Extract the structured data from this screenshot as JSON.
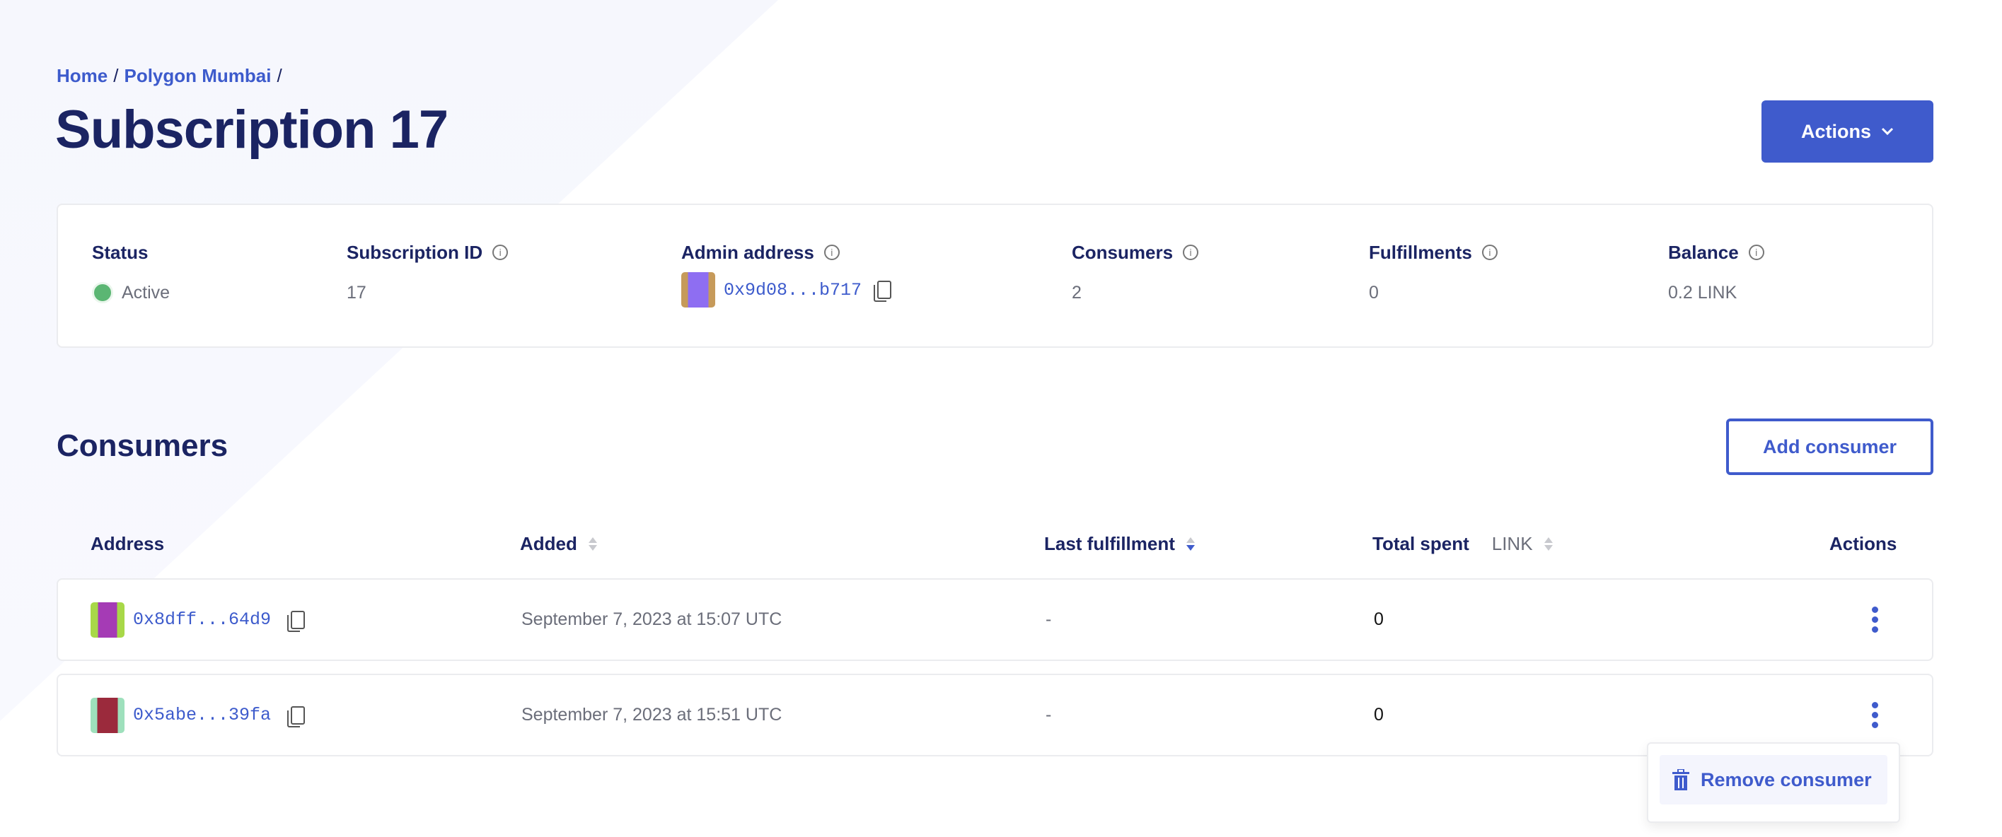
{
  "breadcrumb": [
    {
      "label": "Home"
    },
    {
      "label": "Polygon Mumbai"
    }
  ],
  "breadcrumb_separator": "/",
  "page_title": "Subscription 17",
  "actions_button": {
    "label": "Actions",
    "icon": "chevron-down-icon"
  },
  "summary": {
    "status": {
      "label": "Status",
      "value": "Active",
      "color": "#5bb673"
    },
    "subscription_id": {
      "label": "Subscription ID",
      "value": "17"
    },
    "admin_address": {
      "label": "Admin address",
      "value": "0x9d08...b717"
    },
    "consumers": {
      "label": "Consumers",
      "value": "2"
    },
    "fulfillments": {
      "label": "Fulfillments",
      "value": "0"
    },
    "balance": {
      "label": "Balance",
      "value": "0.2 LINK"
    }
  },
  "consumers_section": {
    "title": "Consumers",
    "add_button": "Add consumer",
    "columns": {
      "address": "Address",
      "added": "Added",
      "last_fulfillment": "Last fulfillment",
      "total_spent": "Total spent",
      "total_spent_unit": "LINK",
      "actions": "Actions"
    },
    "sorted_by": "Last fulfillment",
    "rows": [
      {
        "address": "0x8dff...64d9",
        "added": "September 7, 2023 at 15:07 UTC",
        "last_fulfillment": "-",
        "total_spent": "0"
      },
      {
        "address": "0x5abe...39fa",
        "added": "September 7, 2023 at 15:51 UTC",
        "last_fulfillment": "-",
        "total_spent": "0"
      }
    ],
    "row_menu": {
      "item": "Remove consumer",
      "icon": "trash-icon"
    }
  },
  "colors": {
    "accent": "#3f5bcc",
    "heading": "#1b2463"
  }
}
